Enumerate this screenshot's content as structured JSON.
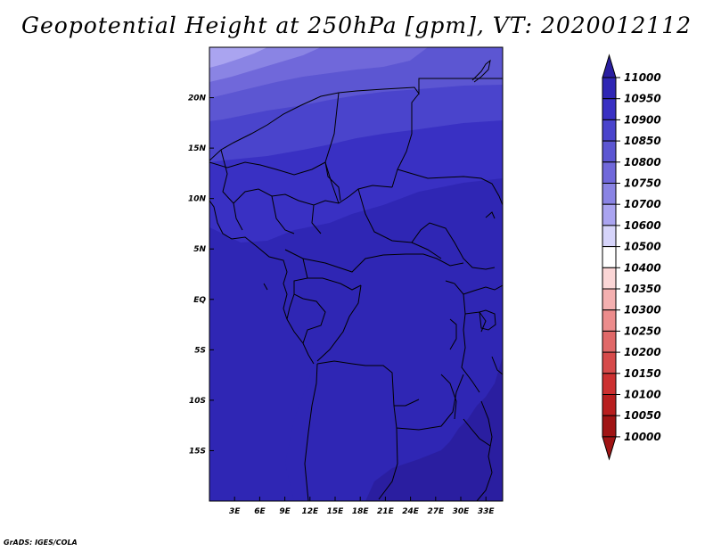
{
  "title": "Geopotential Height at 250hPa [gpm], VT: 2020012112",
  "credit": "GrADS: IGES/COLA",
  "chart_data": {
    "type": "heatmap",
    "variable": "Geopotential Height",
    "level": "250hPa",
    "units": "gpm",
    "valid_time": "2020012112",
    "lon_range": [
      0,
      35
    ],
    "lat_range": [
      -20,
      25
    ],
    "x_ticks": [
      "3E",
      "6E",
      "9E",
      "12E",
      "15E",
      "18E",
      "21E",
      "24E",
      "27E",
      "30E",
      "33E"
    ],
    "x_tick_values": [
      3,
      6,
      9,
      12,
      15,
      18,
      21,
      24,
      27,
      30,
      33
    ],
    "y_ticks": [
      "20N",
      "15N",
      "10N",
      "5N",
      "EQ",
      "5S",
      "10S",
      "15S"
    ],
    "y_tick_values": [
      20,
      15,
      10,
      5,
      0,
      -5,
      -10,
      -15
    ],
    "colorbar_labels": [
      "11000",
      "10950",
      "10900",
      "10850",
      "10800",
      "10750",
      "10700",
      "10600",
      "10500",
      "10400",
      "10350",
      "10300",
      "10250",
      "10200",
      "10150",
      "10100",
      "10050",
      "10000"
    ],
    "colorbar_colors": [
      "#2a1ea0",
      "#2f26b4",
      "#3930c3",
      "#4a44cc",
      "#5c56d2",
      "#7068da",
      "#8a84e4",
      "#aaa4f0",
      "#d6d4fa",
      "#ffffff",
      "#fbd6d6",
      "#f4b0b0",
      "#ec8c8c",
      "#e06868",
      "#d64a4a",
      "#cc3030",
      "#b81e1e",
      "#a01414"
    ],
    "field_colors": {
      "lowest_10700": "#aaa4f0",
      "level_10750": "#8a84e4",
      "level_10800": "#7068da",
      "level_10850": "#5c56d2",
      "level_10900": "#4a44cc",
      "level_10950": "#3930c3",
      "level_11000": "#2f26b4",
      "above_11000": "#2a1ea0"
    }
  }
}
